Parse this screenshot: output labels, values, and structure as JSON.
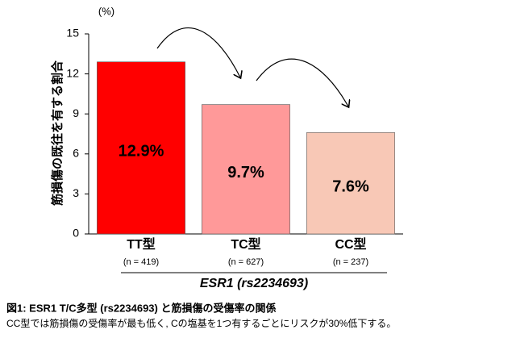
{
  "chart_data": {
    "type": "bar",
    "unit_label": "(%)",
    "ylabel": "筋損傷の既往を有する割合",
    "categories": [
      "TT型",
      "TC型",
      "CC型"
    ],
    "category_notes": [
      "(n = 419)",
      "(n = 627)",
      "(n = 237)"
    ],
    "values": [
      12.9,
      9.7,
      7.6
    ],
    "value_labels": [
      "12.9%",
      "9.7%",
      "7.6%"
    ],
    "colors": [
      "#ff0000",
      "#ff9999",
      "#f8c8b6"
    ],
    "xlabel": "ESR1 (rs2234693)",
    "ylim": [
      0,
      15
    ],
    "yticks": [
      0,
      3,
      6,
      9,
      12,
      15
    ],
    "caption_title": "図1: ESR1 T/C多型 (rs2234693) と筋損傷の受傷率の関係",
    "caption_text": "CC型では筋損傷の受傷率が最も低く, Cの塩基を1つ有するごとにリスクが30%低下する。"
  }
}
